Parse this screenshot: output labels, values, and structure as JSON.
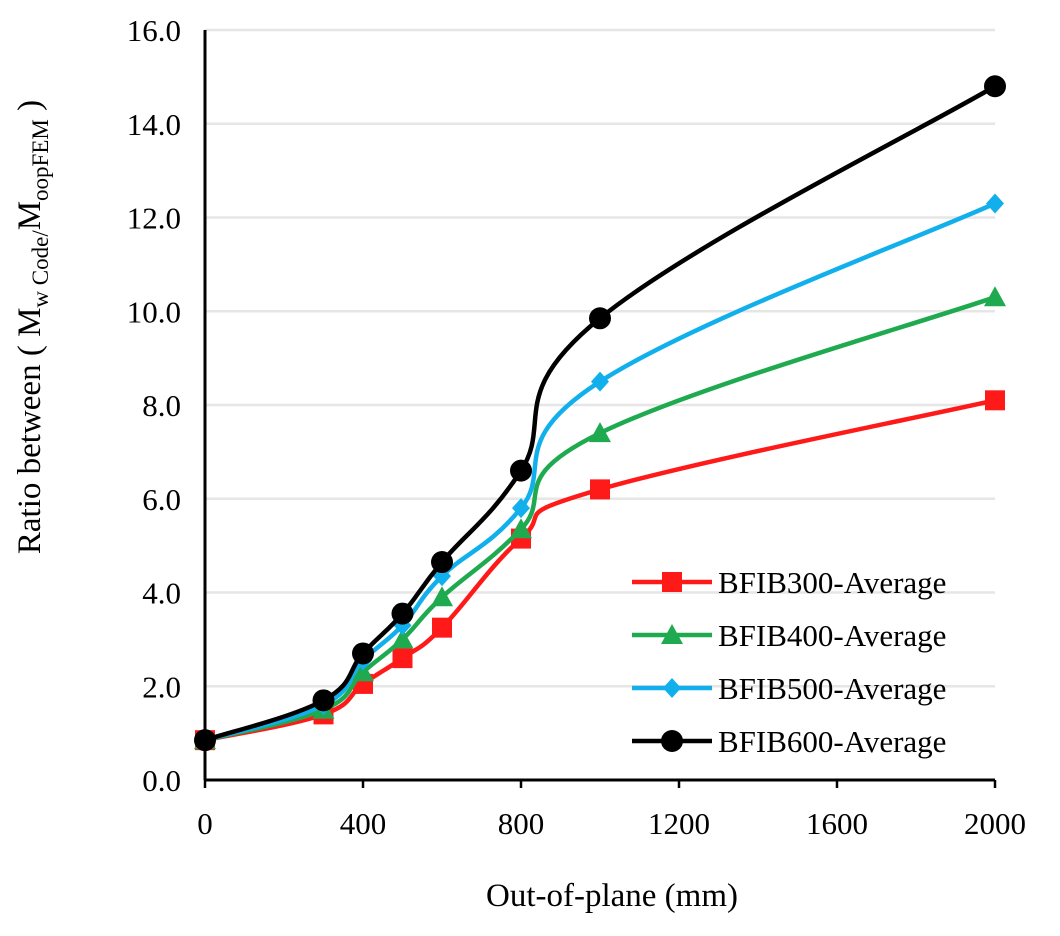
{
  "chart_data": {
    "type": "line",
    "title": "",
    "xlabel": "Out-of-plane (mm)",
    "ylabel": {
      "prefix": "Ratio between ( M",
      "sub1": "w Code/",
      "mid": "M",
      "sub2": "oopFEM",
      "suffix": " )"
    },
    "xlim": [
      0,
      2000
    ],
    "ylim": [
      0,
      16
    ],
    "x_ticks": [
      "0",
      "400",
      "800",
      "1200",
      "1600",
      "2000"
    ],
    "y_ticks": [
      "0.0",
      "2.0",
      "4.0",
      "6.0",
      "8.0",
      "10.0",
      "12.0",
      "14.0",
      "16.0"
    ],
    "grid": true,
    "legend_position": "bottom-right",
    "series": [
      {
        "name": "BFIB300-Average",
        "color": "#ff1a1a",
        "marker": "square",
        "x": [
          0,
          300,
          400,
          500,
          600,
          800,
          1000,
          2000
        ],
        "y": [
          0.85,
          1.4,
          2.05,
          2.6,
          3.25,
          5.15,
          6.2,
          8.1
        ]
      },
      {
        "name": "BFIB400-Average",
        "color": "#1faa4f",
        "marker": "triangle",
        "x": [
          0,
          300,
          400,
          500,
          600,
          800,
          1000,
          2000
        ],
        "y": [
          0.85,
          1.5,
          2.3,
          3.0,
          3.9,
          5.35,
          7.4,
          10.3
        ]
      },
      {
        "name": "BFIB500-Average",
        "color": "#11b0ec",
        "marker": "diamond",
        "x": [
          0,
          300,
          400,
          500,
          600,
          800,
          1000,
          2000
        ],
        "y": [
          0.85,
          1.6,
          2.55,
          3.3,
          4.35,
          5.8,
          8.5,
          12.3
        ]
      },
      {
        "name": "BFIB600-Average",
        "color": "#000000",
        "marker": "circle",
        "x": [
          0,
          300,
          400,
          500,
          600,
          800,
          1000,
          2000
        ],
        "y": [
          0.85,
          1.7,
          2.7,
          3.55,
          4.65,
          6.6,
          9.85,
          14.8
        ]
      }
    ]
  }
}
